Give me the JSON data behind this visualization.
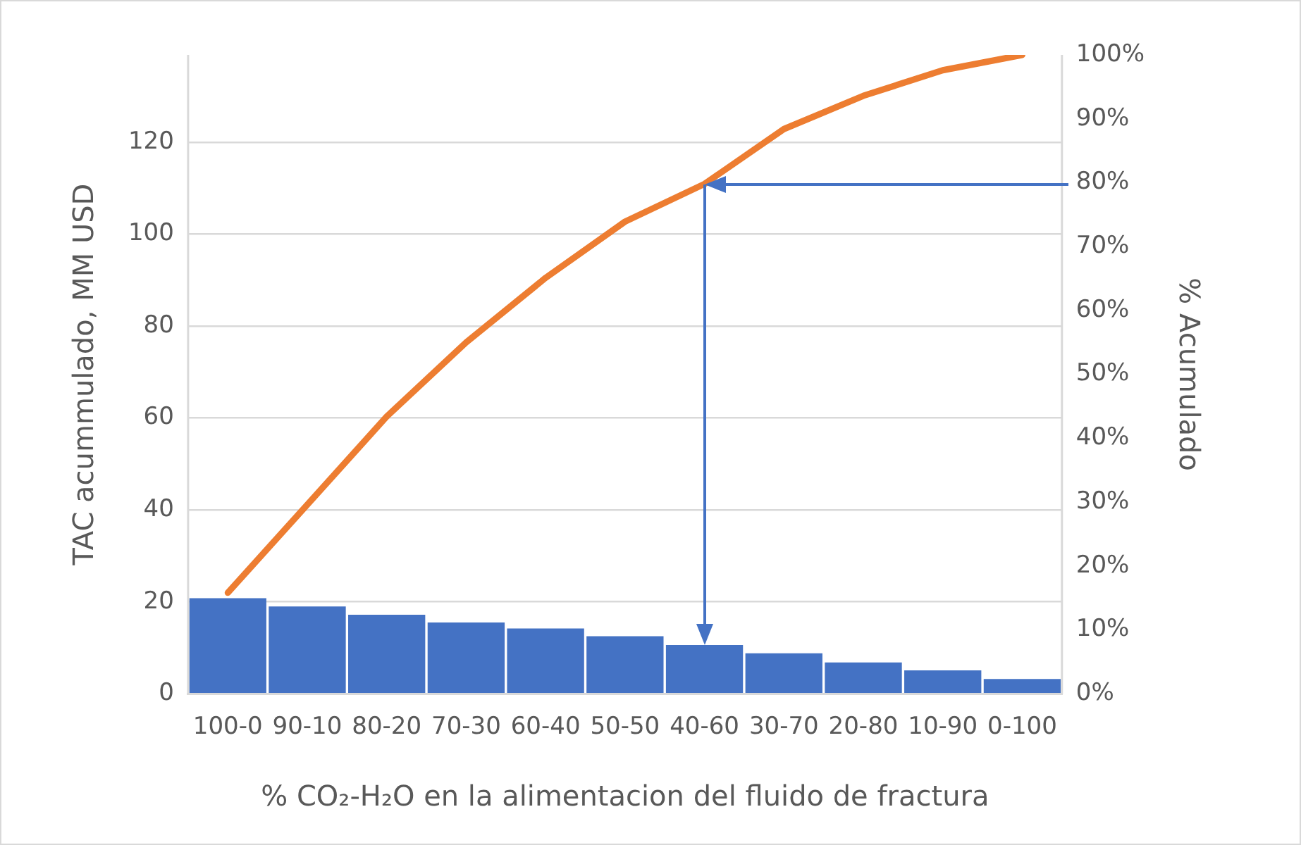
{
  "chart_data": {
    "type": "bar",
    "xlabel": "% CO₂-H₂O en la alimentacion del fluido de fractura",
    "ylabel": "TAC acummulado, MM USD",
    "y2label": "% Acumulado",
    "categories": [
      "100-0",
      "90-10",
      "80-20",
      "70-30",
      "60-40",
      "50-50",
      "40-60",
      "30-70",
      "20-80",
      "10-90",
      "0-100"
    ],
    "series": [
      {
        "color": "#4472c4",
        "values": [
          20.8,
          19.0,
          17.2,
          15.5,
          14.2,
          12.5,
          10.6,
          8.8,
          6.8,
          5.1,
          3.2
        ]
      },
      {
        "type": "line",
        "axis": "y2",
        "color": "#ed7d31",
        "marker": "none",
        "values": [
          15.8,
          29.6,
          43.4,
          55.0,
          65.1,
          73.9,
          79.8,
          88.4,
          93.6,
          97.6,
          100
        ]
      }
    ],
    "ylim": [
      0,
      139
    ],
    "yticks": [
      0,
      20,
      40,
      60,
      80,
      100,
      120
    ],
    "y2lim": [
      0,
      100
    ],
    "y2ticks": [
      {
        "value": 0,
        "label": "0%"
      },
      {
        "value": 10,
        "label": "10%"
      },
      {
        "value": 20,
        "label": "20%"
      },
      {
        "value": 30,
        "label": "30%"
      },
      {
        "value": 40,
        "label": "40%"
      },
      {
        "value": 50,
        "label": "50%"
      },
      {
        "value": 60,
        "label": "60%"
      },
      {
        "value": 70,
        "label": "70%"
      },
      {
        "value": 80,
        "label": "80%"
      },
      {
        "value": 90,
        "label": "90%"
      },
      {
        "value": 100,
        "label": "100%"
      }
    ],
    "grid": "y",
    "legend": false
  }
}
